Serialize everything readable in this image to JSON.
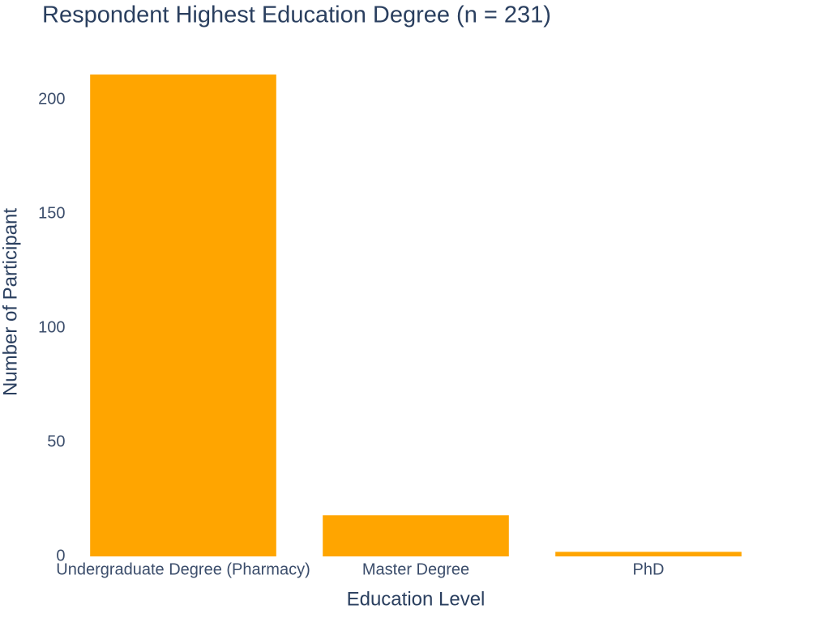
{
  "chart_data": {
    "type": "bar",
    "title": "Respondent Highest Education Degree (n = 231)",
    "x_label": "Education Level",
    "y_label": "Number of Participant",
    "categories": [
      "Undergraduate Degree (Pharmacy)",
      "Master Degree",
      "PhD"
    ],
    "values": [
      211,
      18,
      2
    ],
    "color": "#ffa500",
    "ylim": [
      0,
      222
    ],
    "yticks": [
      0,
      50,
      100,
      150,
      200
    ],
    "grid": false
  }
}
